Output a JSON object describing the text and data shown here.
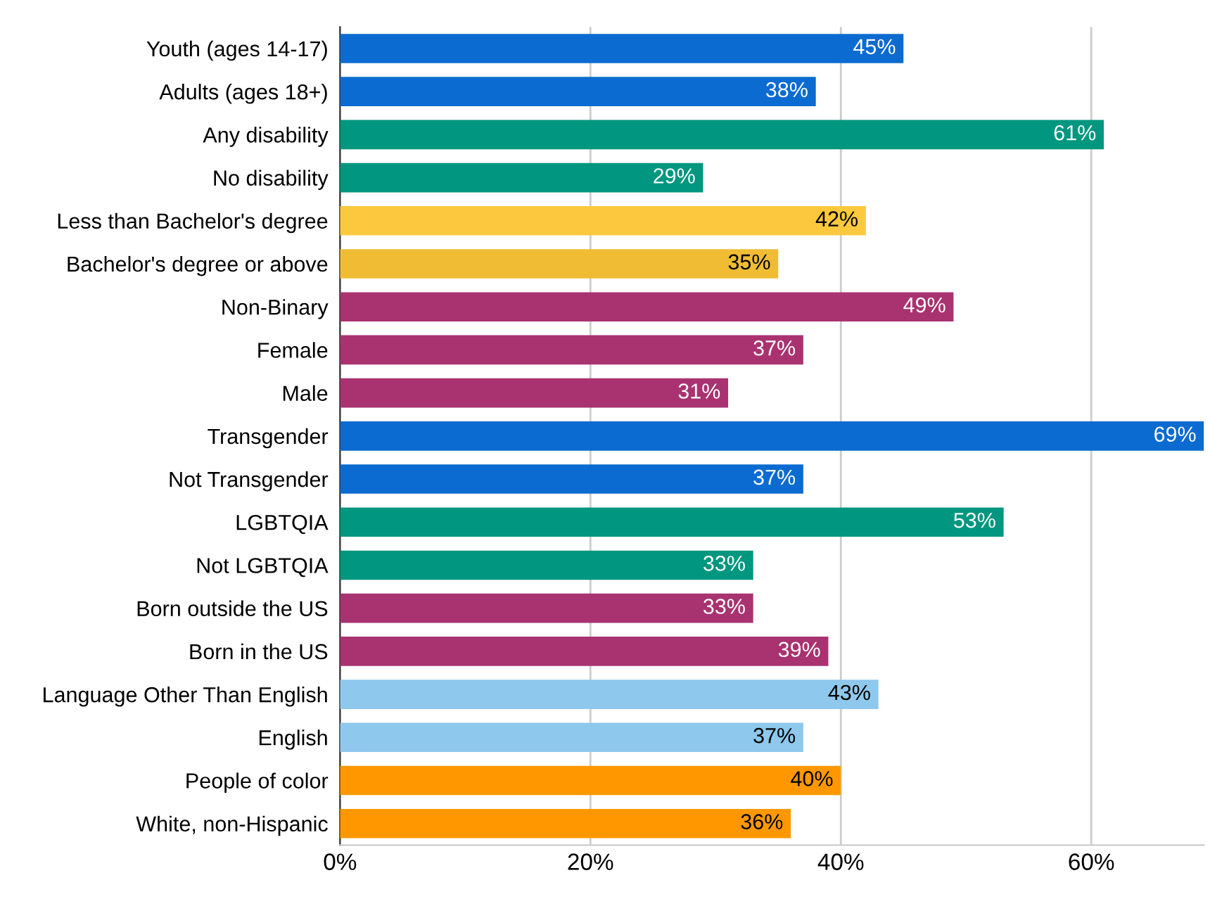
{
  "chart_data": {
    "type": "bar",
    "orientation": "horizontal",
    "categories": [
      "Youth (ages 14-17)",
      "Adults (ages 18+)",
      "Any disability",
      "No disability",
      "Less than Bachelor's degree",
      "Bachelor's degree or above",
      "Non-Binary",
      "Female",
      "Male",
      "Transgender",
      "Not Transgender",
      "LGBTQIA",
      "Not LGBTQIA",
      "Born outside the US",
      "Born in the US",
      "Language Other Than English",
      "English",
      "People of color",
      "White, non-Hispanic"
    ],
    "values": [
      45,
      38,
      61,
      29,
      42,
      35,
      49,
      37,
      31,
      69,
      37,
      53,
      33,
      33,
      39,
      43,
      37,
      40,
      36
    ],
    "value_labels": [
      "45%",
      "38%",
      "61%",
      "29%",
      "42%",
      "35%",
      "49%",
      "37%",
      "31%",
      "69%",
      "37%",
      "53%",
      "33%",
      "33%",
      "39%",
      "43%",
      "37%",
      "40%",
      "36%"
    ],
    "colors": [
      "#0b6bd0",
      "#0b6bd0",
      "#00967f",
      "#00967f",
      "#fcc83e",
      "#f0bc33",
      "#a83370",
      "#a83370",
      "#a83370",
      "#0b6bd0",
      "#0b6bd0",
      "#00967f",
      "#00967f",
      "#a83370",
      "#a83370",
      "#8ec8ec",
      "#8ec8ec",
      "#ff9800",
      "#ff9800"
    ],
    "xlim": [
      0,
      69
    ],
    "xticks": [
      {
        "value": 0,
        "label": "0%"
      },
      {
        "value": 20,
        "label": "20%"
      },
      {
        "value": 40,
        "label": "40%"
      },
      {
        "value": 60,
        "label": "60%"
      }
    ],
    "grid": "x"
  }
}
